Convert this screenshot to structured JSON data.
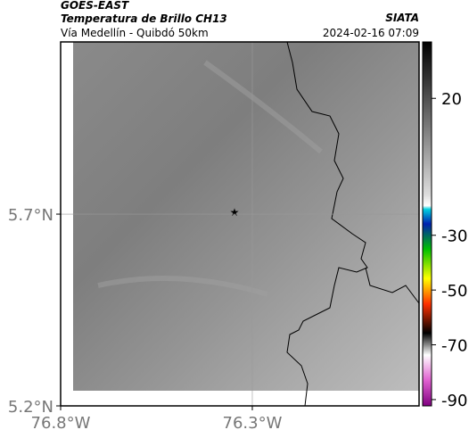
{
  "header": {
    "title": "GOES-EAST",
    "subtitle": "Temperatura de Brillo CH13",
    "region": "Vía Medellín - Quibdó 50km",
    "source": "SIATA",
    "timestamp": "2024-02-16 07:09"
  },
  "map": {
    "xlim": [
      -76.8,
      -75.865
    ],
    "ylim": [
      5.2,
      6.149
    ],
    "xticks": [
      {
        "value": -76.8,
        "label": "76.8°W"
      },
      {
        "value": -76.3,
        "label": "76.3°W"
      }
    ],
    "yticks": [
      {
        "value": 5.2,
        "label": "5.2°N"
      },
      {
        "value": 5.7,
        "label": "5.7°N"
      }
    ],
    "grid": true
  },
  "colorbar": {
    "lim": [
      -92.3,
      40.6
    ],
    "ticks": [
      20,
      -30,
      -50,
      -70,
      -90
    ]
  }
}
